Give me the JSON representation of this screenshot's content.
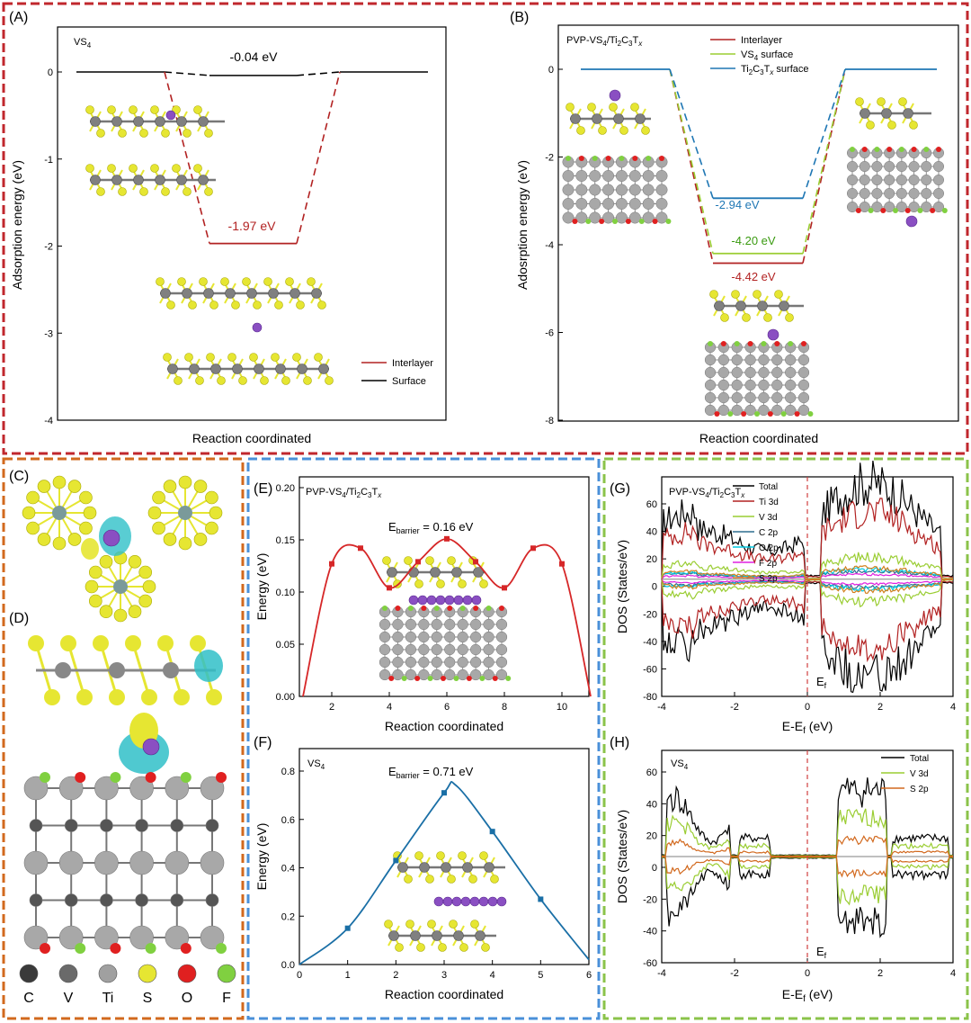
{
  "panels": {
    "A": {
      "letter": "(A)",
      "title": "VS",
      "title_sub": "4",
      "xlabel": "Reaction coordinated",
      "ylabel": "Adsorption energy (eV)",
      "yticks": [
        "0",
        "-1",
        "-2",
        "-3",
        "-4"
      ],
      "ann_surface": "-0.04 eV",
      "ann_interlayer": "-1.97 eV",
      "legend": [
        "Interlayer",
        "Surface"
      ]
    },
    "B": {
      "letter": "(B)",
      "title": "PVP-VS4/Ti2C3Tx",
      "xlabel": "Reaction coordinated",
      "ylabel": "Adosrption energy (eV)",
      "yticks": [
        "0",
        "-2",
        "-4",
        "-6",
        "-8"
      ],
      "ann_ti": "-2.94 eV",
      "ann_vs4": "-4.20 eV",
      "ann_inter": "-4.42 eV",
      "legend": [
        "Interlayer",
        "VS4 surface",
        "Ti2C3Tx surface"
      ]
    },
    "C": {
      "letter": "(C)"
    },
    "D": {
      "letter": "(D)"
    },
    "E": {
      "letter": "(E)",
      "title": "PVP-VS4/Ti2C3Tx",
      "barrier": "0.16 eV",
      "xlabel": "Reaction coordinated",
      "ylabel": "Energy (eV)",
      "yticks": [
        "0.00",
        "0.05",
        "0.10",
        "0.15",
        "0.20"
      ],
      "xticks": [
        "2",
        "4",
        "6",
        "8",
        "10"
      ]
    },
    "F": {
      "letter": "(F)",
      "title": "VS",
      "title_sub": "4",
      "barrier": "0.71 eV",
      "xlabel": "Reaction coordinated",
      "ylabel": "Energy (eV)",
      "yticks": [
        "0.0",
        "0.2",
        "0.4",
        "0.6",
        "0.8"
      ],
      "xticks": [
        "0",
        "1",
        "2",
        "3",
        "4",
        "5",
        "6"
      ]
    },
    "G": {
      "letter": "(G)",
      "title": "PVP-VS4/Ti2C3Tx",
      "xlabel": "E-E",
      "ylabel": "DOS (States/eV)",
      "yticks": [
        "60",
        "40",
        "20",
        "0",
        "-20",
        "-40",
        "-60",
        "-80"
      ],
      "xticks": [
        "-4",
        "-2",
        "0",
        "2",
        "4"
      ],
      "legend": [
        "Total",
        "Ti 3d",
        "V 3d",
        "C 2p",
        "O 2p",
        "F 2p",
        "S 2p"
      ]
    },
    "H": {
      "letter": "(H)",
      "title": "VS",
      "title_sub": "4",
      "xlabel": "E-E",
      "ylabel": "DOS (States/eV)",
      "yticks": [
        "60",
        "40",
        "20",
        "0",
        "-20",
        "-40",
        "-60"
      ],
      "xticks": [
        "-4",
        "-2",
        "0",
        "2",
        "4"
      ],
      "legend": [
        "Total",
        "V 3d",
        "S 2p"
      ]
    }
  },
  "element_legend": [
    "C",
    "V",
    "Ti",
    "S",
    "O",
    "F"
  ],
  "fermi_label": "E",
  "fermi_sub": "f",
  "xunit": "(eV)",
  "colors": {
    "interlayer": "#b22222",
    "surface": "#000000",
    "vs4": "#9acd32",
    "ti": "#1f77b4",
    "blue_line": "#1a6fa6",
    "red_line": "#d62728",
    "frame_red": "#c0272d",
    "frame_orange": "#d2691e",
    "frame_blue": "#4a90d9",
    "frame_green": "#8bc34a",
    "sulfur": "#e6e632",
    "oxygen": "#e02020",
    "fluorine": "#80d040",
    "grey": "#888888",
    "dark": "#444444",
    "purple": "#8a4fc2",
    "cyan": "#30c0c8"
  },
  "chart_data": [
    {
      "panel": "A",
      "type": "line",
      "title": "VS4",
      "xlabel": "Reaction coordinated",
      "ylabel": "Adsorption energy (eV)",
      "ylim": [
        -4,
        0.5
      ],
      "series": [
        {
          "name": "Interlayer",
          "x": [
            0,
            1,
            2,
            3
          ],
          "y": [
            0,
            -1.97,
            -1.97,
            0
          ]
        },
        {
          "name": "Surface",
          "x": [
            0,
            1,
            2,
            3
          ],
          "y": [
            0,
            -0.04,
            -0.04,
            0
          ]
        }
      ]
    },
    {
      "panel": "B",
      "type": "line",
      "title": "PVP-VS4/Ti2C3Tx",
      "xlabel": "Reaction coordinated",
      "ylabel": "Adosrption energy (eV)",
      "ylim": [
        -8,
        1
      ],
      "series": [
        {
          "name": "Interlayer",
          "x": [
            0,
            1,
            2,
            3
          ],
          "y": [
            0,
            -4.42,
            -4.42,
            0
          ]
        },
        {
          "name": "VS4 surface",
          "x": [
            0,
            1,
            2,
            3
          ],
          "y": [
            0,
            -4.2,
            -4.2,
            0
          ]
        },
        {
          "name": "Ti2C3Tx surface",
          "x": [
            0,
            1,
            2,
            3
          ],
          "y": [
            0,
            -2.94,
            -2.94,
            0
          ]
        }
      ]
    },
    {
      "panel": "E",
      "type": "line",
      "title": "PVP-VS4/Ti2C3Tx",
      "xlabel": "Reaction coordinated",
      "ylabel": "Energy (eV)",
      "xlim": [
        1,
        11
      ],
      "ylim": [
        0,
        0.21
      ],
      "series": [
        {
          "x": [
            1,
            2,
            3,
            4,
            5,
            6,
            7,
            8,
            9,
            10,
            11
          ],
          "y": [
            0.0,
            0.127,
            0.142,
            0.104,
            0.129,
            0.151,
            0.129,
            0.104,
            0.142,
            0.127,
            0.0
          ]
        }
      ]
    },
    {
      "panel": "F",
      "type": "line",
      "title": "VS4",
      "xlabel": "Reaction coordinated",
      "ylabel": "Energy (eV)",
      "xlim": [
        0,
        6
      ],
      "ylim": [
        0,
        0.85
      ],
      "series": [
        {
          "x": [
            0,
            1,
            2,
            3,
            4,
            5,
            6
          ],
          "y": [
            0.0,
            0.15,
            0.43,
            0.71,
            0.55,
            0.27,
            0.02
          ]
        }
      ]
    },
    {
      "panel": "G",
      "type": "line",
      "title": "PVP-VS4/Ti2C3Tx",
      "xlabel": "E-Ef (eV)",
      "ylabel": "DOS (States/eV)",
      "xlim": [
        -4,
        4
      ],
      "ylim": [
        -80,
        70
      ],
      "series": [
        {
          "name": "Total"
        },
        {
          "name": "Ti 3d"
        },
        {
          "name": "V 3d"
        },
        {
          "name": "C 2p"
        },
        {
          "name": "O 2p"
        },
        {
          "name": "F 2p"
        },
        {
          "name": "S 2p"
        }
      ]
    },
    {
      "panel": "H",
      "type": "line",
      "title": "VS4",
      "xlabel": "E-Ef (eV)",
      "ylabel": "DOS (States/eV)",
      "xlim": [
        -4,
        4
      ],
      "ylim": [
        -70,
        70
      ],
      "series": [
        {
          "name": "Total"
        },
        {
          "name": "V 3d"
        },
        {
          "name": "S 2p"
        }
      ]
    }
  ]
}
